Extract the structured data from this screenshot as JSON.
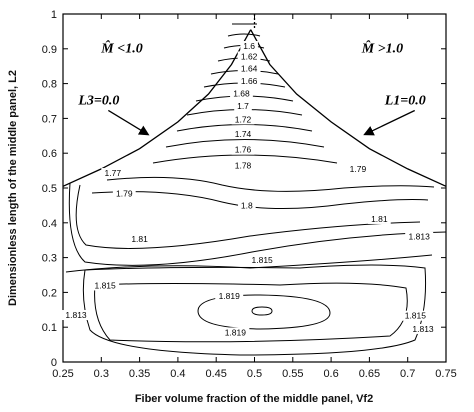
{
  "chart_data": {
    "type": "contour",
    "xlabel": "Fiber volume fraction of the middle panel, Vf2",
    "ylabel": "Dimensionless length of the middle panel, L2",
    "xlim": [
      0.25,
      0.75
    ],
    "ylim": [
      0,
      1
    ],
    "xticks": [
      "0.25",
      "0.3",
      "0.35",
      "0.4",
      "0.45",
      "0.5",
      "0.55",
      "0.6",
      "0.65",
      "0.7",
      "0.75"
    ],
    "yticks": [
      "0",
      "0.1",
      "0.2",
      "0.3",
      "0.4",
      "0.5",
      "0.6",
      "0.7",
      "0.8",
      "0.9",
      "1"
    ],
    "grid": false,
    "contour_levels": [
      {
        "label": "1.6",
        "x": 0.493,
        "y": 0.908
      },
      {
        "label": "1.62",
        "x": 0.493,
        "y": 0.878
      },
      {
        "label": "1.64",
        "x": 0.493,
        "y": 0.843
      },
      {
        "label": "1.66",
        "x": 0.493,
        "y": 0.807
      },
      {
        "label": "1.68",
        "x": 0.483,
        "y": 0.772
      },
      {
        "label": "1.7",
        "x": 0.485,
        "y": 0.735
      },
      {
        "label": "1.72",
        "x": 0.485,
        "y": 0.697
      },
      {
        "label": "1.74",
        "x": 0.485,
        "y": 0.655
      },
      {
        "label": "1.76",
        "x": 0.485,
        "y": 0.61
      },
      {
        "label": "1.77",
        "x": 0.315,
        "y": 0.543
      },
      {
        "label": "1.78",
        "x": 0.485,
        "y": 0.565
      },
      {
        "label": "1.79",
        "x": 0.635,
        "y": 0.555
      },
      {
        "label": "1.79",
        "x": 0.33,
        "y": 0.484
      },
      {
        "label": "1.8",
        "x": 0.49,
        "y": 0.45
      },
      {
        "label": "1.81",
        "x": 0.663,
        "y": 0.411
      },
      {
        "label": "1.81",
        "x": 0.35,
        "y": 0.353
      },
      {
        "label": "1.813",
        "x": 0.715,
        "y": 0.36
      },
      {
        "label": "1.815",
        "x": 0.51,
        "y": 0.293
      },
      {
        "label": "1.815",
        "x": 0.305,
        "y": 0.22
      },
      {
        "label": "1.819",
        "x": 0.467,
        "y": 0.19
      },
      {
        "label": "1.819",
        "x": 0.475,
        "y": 0.085
      },
      {
        "label": "1.813",
        "x": 0.267,
        "y": 0.135
      },
      {
        "label": "1.815",
        "x": 0.71,
        "y": 0.133
      },
      {
        "label": "1.813",
        "x": 0.72,
        "y": 0.095
      }
    ],
    "boundaries": [
      {
        "label": "L3=0.0",
        "points": [
          [
            0.25,
            0.505
          ],
          [
            0.3,
            0.555
          ],
          [
            0.35,
            0.613
          ],
          [
            0.4,
            0.69
          ],
          [
            0.44,
            0.77
          ],
          [
            0.47,
            0.855
          ],
          [
            0.495,
            0.955
          ]
        ]
      },
      {
        "label": "L1=0.0",
        "points": [
          [
            0.495,
            0.955
          ],
          [
            0.52,
            0.855
          ],
          [
            0.555,
            0.77
          ],
          [
            0.6,
            0.69
          ],
          [
            0.65,
            0.613
          ],
          [
            0.7,
            0.555
          ],
          [
            0.75,
            0.505
          ]
        ]
      }
    ],
    "annotations": [
      {
        "text": "M̂ <1.0",
        "x": 0.3,
        "y": 0.89
      },
      {
        "text": "M̂ >1.0",
        "x": 0.64,
        "y": 0.89
      },
      {
        "text": "L3=0.0",
        "x": 0.27,
        "y": 0.74,
        "arrow_to": [
          0.36,
          0.655
        ]
      },
      {
        "text": "L1=0.0",
        "x": 0.67,
        "y": 0.74,
        "arrow_to": [
          0.645,
          0.655
        ]
      }
    ]
  }
}
